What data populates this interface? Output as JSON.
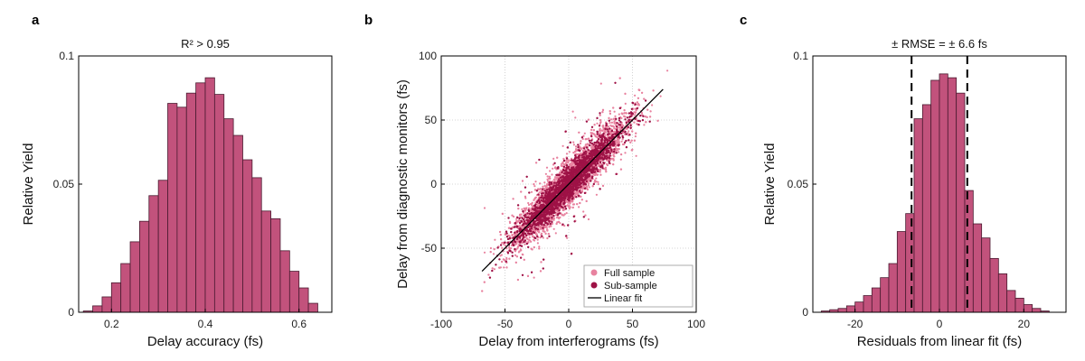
{
  "colors": {
    "bar_fill": "#c2527c",
    "bar_edge": "#4a1a30",
    "full_sample": "#e8829f",
    "sub_sample": "#9e1246",
    "fit_line": "#000000",
    "grid": "#c8c8c8"
  },
  "chart_data": [
    {
      "panel_label": "a",
      "type": "bar",
      "title": "R² > 0.95",
      "xlabel": "Delay accuracy (fs)",
      "ylabel": "Relative Yield",
      "xlim": [
        0.13,
        0.67
      ],
      "ylim": [
        0,
        0.1
      ],
      "xticks": [
        0.2,
        0.4,
        0.6
      ],
      "xtick_labels": [
        "0.2",
        "0.4",
        "0.6"
      ],
      "yticks": [
        0,
        0.05,
        0.1
      ],
      "ytick_labels": [
        "0",
        "0.05",
        "0.1"
      ],
      "bin_edges": [
        0.14,
        0.16,
        0.18,
        0.2,
        0.22,
        0.24,
        0.26,
        0.28,
        0.3,
        0.32,
        0.34,
        0.36,
        0.38,
        0.4,
        0.42,
        0.44,
        0.46,
        0.48,
        0.5,
        0.52,
        0.54,
        0.56,
        0.58,
        0.6,
        0.62,
        0.64
      ],
      "values": [
        0.0005,
        0.0025,
        0.006,
        0.0115,
        0.019,
        0.0275,
        0.0355,
        0.0455,
        0.0515,
        0.0815,
        0.08,
        0.0855,
        0.0895,
        0.0915,
        0.085,
        0.0755,
        0.069,
        0.0595,
        0.0525,
        0.0395,
        0.0365,
        0.024,
        0.016,
        0.0095,
        0.0035
      ]
    },
    {
      "panel_label": "b",
      "type": "scatter",
      "xlabel": "Delay from interferograms (fs)",
      "ylabel": "Delay from diagnostic monitors (fs)",
      "xlim": [
        -100,
        100
      ],
      "ylim": [
        -100,
        100
      ],
      "xticks": [
        -100,
        -50,
        0,
        50,
        100
      ],
      "xtick_labels": [
        "-100",
        "-50",
        "0",
        "50",
        "100"
      ],
      "yticks": [
        -50,
        0,
        50,
        100
      ],
      "ytick_labels": [
        "-50",
        "0",
        "50",
        "100"
      ],
      "grid": true,
      "legend_position": "bottom-right",
      "series": [
        {
          "name": "Full sample",
          "kind": "points",
          "spread_std": 9,
          "x_std": 22,
          "count": 5500
        },
        {
          "name": "Sub-sample",
          "kind": "points",
          "spread_std": 6.5,
          "x_std": 20,
          "count": 4200
        },
        {
          "name": "Linear fit",
          "kind": "line",
          "slope": 1.0,
          "intercept": 0,
          "x_range": [
            -68,
            74
          ]
        }
      ]
    },
    {
      "panel_label": "c",
      "type": "bar",
      "title": "± RMSE = ±  6.6 fs",
      "xlabel": "Residuals from linear fit (fs)",
      "ylabel": "Relative Yield",
      "xlim": [
        -30,
        30
      ],
      "ylim": [
        0,
        0.1
      ],
      "xticks": [
        -20,
        0,
        20
      ],
      "xtick_labels": [
        "-20",
        "0",
        "20"
      ],
      "yticks": [
        0,
        0.05,
        0.1
      ],
      "ytick_labels": [
        "0",
        "0.05",
        "0.1"
      ],
      "rmse_lines": [
        -6.6,
        6.6
      ],
      "bin_edges": [
        -28,
        -26,
        -24,
        -22,
        -20,
        -18,
        -16,
        -14,
        -12,
        -10,
        -8,
        -6,
        -4,
        -2,
        0,
        2,
        4,
        6,
        8,
        10,
        12,
        14,
        16,
        18,
        20,
        22,
        24,
        26
      ],
      "values": [
        0.0005,
        0.001,
        0.0015,
        0.0025,
        0.004,
        0.0065,
        0.0095,
        0.0135,
        0.019,
        0.0315,
        0.0385,
        0.0755,
        0.081,
        0.0905,
        0.093,
        0.0915,
        0.0855,
        0.0475,
        0.0345,
        0.029,
        0.021,
        0.015,
        0.0085,
        0.0055,
        0.003,
        0.0015,
        0.0005
      ]
    }
  ]
}
